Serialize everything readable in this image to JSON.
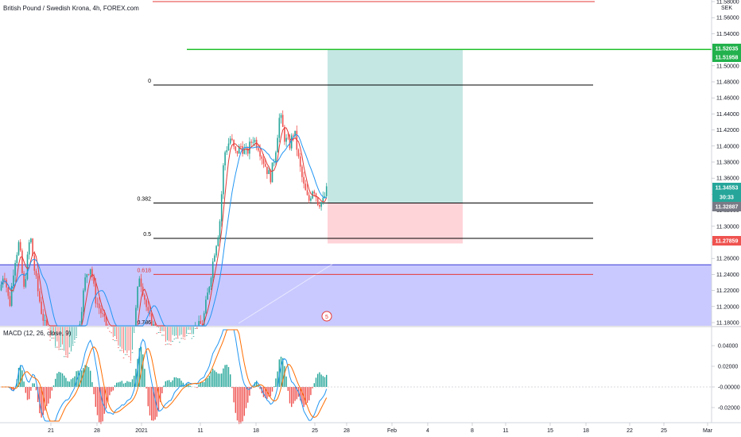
{
  "header": {
    "title": "British Pound / Swedish Krona, 4h, FOREX.com"
  },
  "price_axis": {
    "currency": "SEK",
    "ticks": [
      "11.58000",
      "11.56000",
      "11.54000",
      "11.52000",
      "11.50000",
      "11.48000",
      "11.46000",
      "11.44000",
      "11.42000",
      "11.40000",
      "11.38000",
      "11.36000",
      "11.34000",
      "11.32000",
      "11.30000",
      "11.28000",
      "11.26000",
      "11.24000",
      "11.22000",
      "11.20000",
      "11.18000"
    ],
    "badges": [
      {
        "value": "11.52035",
        "color": "#22b14c"
      },
      {
        "value": "11.51958",
        "color": "#22b14c"
      },
      {
        "value": "11.34553",
        "color": "#26a69a"
      },
      {
        "value": "30:33",
        "color": "#26a69a"
      },
      {
        "value": "11.32887",
        "color": "#787b86"
      },
      {
        "value": "11.27859",
        "color": "#ef5350"
      }
    ]
  },
  "fibonacci": {
    "levels": [
      {
        "label": "0",
        "price": 11.476,
        "color": "#000000"
      },
      {
        "label": "0.382",
        "price": 11.329,
        "color": "#000000"
      },
      {
        "label": "0.5",
        "price": 11.285,
        "color": "#000000"
      },
      {
        "label": "0.618",
        "price": 11.24,
        "color": "#e53935"
      },
      {
        "label": "0.786",
        "price": 11.175,
        "color": "#000000"
      }
    ]
  },
  "lines": {
    "top_red_price": 11.58,
    "green_price": 11.5203
  },
  "position": {
    "entry": 11.329,
    "target": 11.5203,
    "stop": 11.2786,
    "profit_color": "#b2dfdb",
    "loss_color": "#ffcdd2"
  },
  "zone": {
    "top_price": 11.252,
    "color": "#9c9cff"
  },
  "event_marker": {
    "label": "5"
  },
  "macd": {
    "title": "MACD (12, 26, close, 9)",
    "ticks": [
      "0.04000",
      "0.02000",
      "-0.00000",
      "-0.02000"
    ]
  },
  "time_axis": {
    "ticks": [
      "21",
      "28",
      "2021",
      "11",
      "18",
      "25",
      "28",
      "Feb",
      "4",
      "8",
      "11",
      "15",
      "18",
      "22",
      "25",
      "Mar"
    ]
  },
  "chart_data": {
    "type": "candlestick",
    "title": "British Pound / Swedish Krona, 4h, FOREX.com",
    "ylabel": "SEK",
    "ylim": [
      11.17,
      11.58
    ],
    "price_path": [
      [
        0,
        11.22
      ],
      [
        5,
        11.245
      ],
      [
        12,
        11.2
      ],
      [
        18,
        11.255
      ],
      [
        24,
        11.28
      ],
      [
        30,
        11.22
      ],
      [
        38,
        11.29
      ],
      [
        44,
        11.24
      ],
      [
        52,
        11.195
      ],
      [
        58,
        11.17
      ],
      [
        70,
        11.15
      ],
      [
        85,
        11.13
      ],
      [
        100,
        11.18
      ],
      [
        108,
        11.24
      ],
      [
        114,
        11.25
      ],
      [
        120,
        11.21
      ],
      [
        128,
        11.19
      ],
      [
        135,
        11.17
      ],
      [
        150,
        11.14
      ],
      [
        165,
        11.13
      ],
      [
        175,
        11.24
      ],
      [
        180,
        11.22
      ],
      [
        186,
        11.19
      ],
      [
        195,
        11.17
      ],
      [
        210,
        11.15
      ],
      [
        230,
        11.16
      ],
      [
        245,
        11.17
      ],
      [
        255,
        11.18
      ],
      [
        262,
        11.22
      ],
      [
        270,
        11.27
      ],
      [
        276,
        11.3
      ],
      [
        282,
        11.39
      ],
      [
        290,
        11.41
      ],
      [
        296,
        11.39
      ],
      [
        303,
        11.4
      ],
      [
        310,
        11.39
      ],
      [
        318,
        11.41
      ],
      [
        325,
        11.4
      ],
      [
        332,
        11.38
      ],
      [
        340,
        11.36
      ],
      [
        346,
        11.39
      ],
      [
        352,
        11.44
      ],
      [
        358,
        11.41
      ],
      [
        364,
        11.4
      ],
      [
        370,
        11.42
      ],
      [
        376,
        11.38
      ],
      [
        382,
        11.35
      ],
      [
        388,
        11.33
      ],
      [
        394,
        11.35
      ],
      [
        400,
        11.33
      ],
      [
        406,
        11.33
      ],
      [
        411,
        11.345
      ]
    ],
    "macd_ylim": [
      -0.035,
      0.055
    ]
  }
}
